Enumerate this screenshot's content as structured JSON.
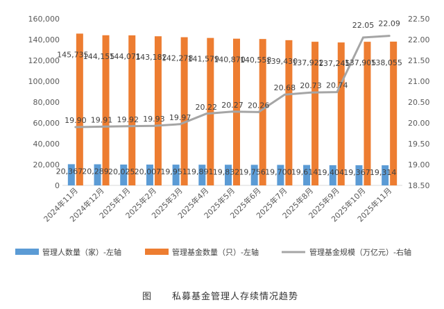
{
  "chart_data": {
    "type": "bar",
    "title": "",
    "caption_prefix": "图",
    "caption": "私募基金管理人存续情况趋势",
    "categories": [
      "2024年11月",
      "2024年12月",
      "2025年1月",
      "2025年2月",
      "2025年3月",
      "2025年4月",
      "2025年5月",
      "2025年6月",
      "2025年7月",
      "2025年8月",
      "2025年9月",
      "2025年10月",
      "2025年11月"
    ],
    "series": [
      {
        "name": "管理人数量（家）-左轴",
        "kind": "bar",
        "axis": "left",
        "color": "#5B9BD5",
        "values": [
          20367,
          20289,
          20025,
          20007,
          19951,
          19891,
          19832,
          19756,
          19700,
          19614,
          19404,
          19367,
          19314
        ],
        "labels": [
          "20,367",
          "20,289",
          "20,025",
          "20,007",
          "19,951",
          "19,891",
          "19,832",
          "19,756",
          "19,700",
          "19,614",
          "19,404",
          "19,367",
          "19,314"
        ]
      },
      {
        "name": "管理基金数量（只）-左轴",
        "kind": "bar",
        "axis": "left",
        "color": "#ED7D31",
        "values": [
          145735,
          144155,
          144071,
          143182,
          142278,
          141579,
          140870,
          140558,
          139430,
          137922,
          137245,
          137905,
          138055
        ],
        "labels": [
          "145,735",
          "144,155",
          "144,071",
          "143,182",
          "142,278",
          "141,579",
          "140,870",
          "140,558",
          "139,430",
          "137,922",
          "137,245",
          "137,905",
          "138,055"
        ]
      },
      {
        "name": "管理基金规模（万亿元）-右轴",
        "kind": "line",
        "axis": "right",
        "color": "#A5A5A5",
        "values": [
          19.9,
          19.91,
          19.92,
          19.93,
          19.97,
          20.22,
          20.27,
          20.26,
          20.68,
          20.73,
          20.74,
          22.05,
          22.09
        ],
        "labels": [
          "19.90",
          "19.91",
          "19.92",
          "19.93",
          "19.97",
          "20.22",
          "20.27",
          "20.26",
          "20.68",
          "20.73",
          "20.74",
          "22.05",
          "22.09"
        ]
      }
    ],
    "left_axis": {
      "min": 0,
      "max": 160000,
      "ticks": [
        "0",
        "20,000",
        "40,000",
        "60,000",
        "80,000",
        "100,000",
        "120,000",
        "140,000",
        "160,000"
      ]
    },
    "right_axis": {
      "min": 18.5,
      "max": 22.5,
      "ticks": [
        "18.50",
        "19.00",
        "19.50",
        "20.00",
        "20.50",
        "21.00",
        "21.50",
        "22.00",
        "22.50"
      ]
    },
    "grid": false,
    "legend_position": "bottom"
  }
}
